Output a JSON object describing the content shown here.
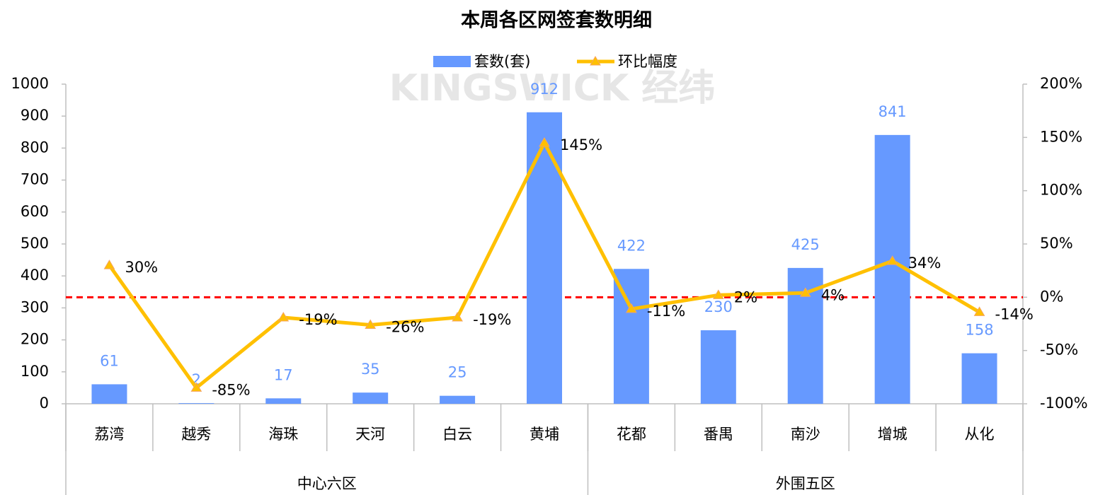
{
  "chart_data": {
    "type": "bar_line",
    "title": "本周各区网签套数明细",
    "watermark": "KINGSWICK 经纬",
    "categories": [
      "荔湾",
      "越秀",
      "海珠",
      "天河",
      "白云",
      "黄埔",
      "花都",
      "番禺",
      "南沙",
      "增城",
      "从化"
    ],
    "groups": [
      {
        "name": "中心六区",
        "members": [
          "荔湾",
          "越秀",
          "海珠",
          "天河",
          "白云",
          "黄埔"
        ]
      },
      {
        "name": "外围五区",
        "members": [
          "花都",
          "番禺",
          "南沙",
          "增城",
          "从化"
        ]
      }
    ],
    "series": [
      {
        "name": "套数(套)",
        "type": "bar",
        "color": "#6699ff",
        "values": [
          61,
          2,
          17,
          35,
          25,
          912,
          422,
          230,
          425,
          841,
          158
        ]
      },
      {
        "name": "环比幅度",
        "type": "line",
        "axis": "y2",
        "color": "#ffc000",
        "values": [
          30,
          -85,
          -19,
          -26,
          -19,
          145,
          -11,
          2,
          4,
          34,
          -14
        ],
        "value_labels": [
          "30%",
          "-85%",
          "-19%",
          "-26%",
          "-19%",
          "145%",
          "-11%",
          "2%",
          "4%",
          "34%",
          "-14%"
        ]
      }
    ],
    "ylim": [
      0,
      1000
    ],
    "yticks": [
      0,
      100,
      200,
      300,
      400,
      500,
      600,
      700,
      800,
      900,
      1000
    ],
    "y2lim": [
      -100,
      200
    ],
    "y2ticks": [
      {
        "value": -100,
        "label": "-100%"
      },
      {
        "value": -50,
        "label": "-50%"
      },
      {
        "value": 0,
        "label": "0%"
      },
      {
        "value": 50,
        "label": "50%"
      },
      {
        "value": 100,
        "label": "100%"
      },
      {
        "value": 150,
        "label": "150%"
      },
      {
        "value": 200,
        "label": "200%"
      }
    ],
    "reference_line": {
      "axis": "y2",
      "value": 0,
      "color": "#ff0000"
    },
    "legend": "top"
  }
}
